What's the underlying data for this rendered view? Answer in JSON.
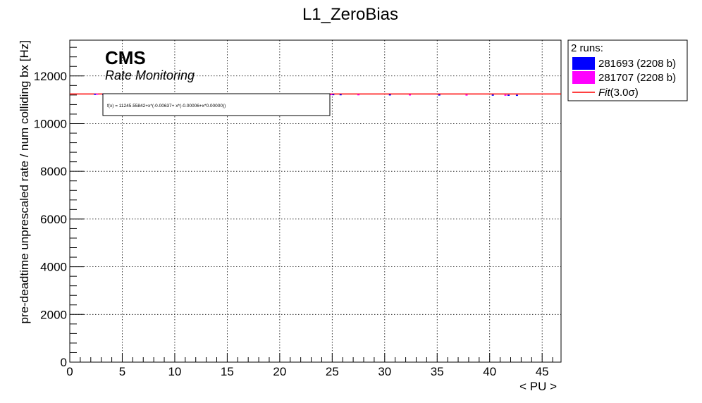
{
  "chart_data": {
    "type": "scatter",
    "title": "L1_ZeroBias",
    "xlabel": "< PU >",
    "ylabel": "pre-deadtime unprescaled rate / num colliding bx [Hz]",
    "xlim": [
      0,
      46.8
    ],
    "ylim": [
      0,
      13500
    ],
    "x_ticks": [
      0,
      5,
      10,
      15,
      20,
      25,
      30,
      35,
      40,
      45
    ],
    "y_ticks": [
      0,
      2000,
      4000,
      6000,
      8000,
      10000,
      12000
    ],
    "grid": true,
    "logo": {
      "main": "CMS",
      "sub": "Rate Monitoring"
    },
    "legend": {
      "placement": "right-outside-top",
      "header": "2 runs:",
      "entries": [
        {
          "label": "281693 (2208 b)",
          "color": "#0000ff",
          "kind": "box"
        },
        {
          "label": "281707 (2208 b)",
          "color": "#ff00ff",
          "kind": "box"
        },
        {
          "label": "Fit",
          "suffix": "(3.0σ)",
          "color": "#ff0000",
          "kind": "line"
        }
      ]
    },
    "fit": {
      "text": "f(x) = 11245.55842+x*(-0.00637+ x*(-0.00006+x*0.00000))",
      "a0": 11245.55842,
      "a1": -0.00637,
      "a2": -6e-05,
      "a3": 0.0,
      "color": "#ff0000"
    },
    "series": [
      {
        "name": "281693 (2208 b)",
        "color": "#0000ff",
        "points": [
          [
            2.4,
            11230
          ],
          [
            3.2,
            11225
          ],
          [
            25.1,
            11215
          ],
          [
            25.8,
            11212
          ],
          [
            30.5,
            11205
          ],
          [
            35.2,
            11200
          ],
          [
            40.3,
            11195
          ],
          [
            41.8,
            11190
          ],
          [
            42.6,
            11188
          ]
        ]
      },
      {
        "name": "281707 (2208 b)",
        "color": "#ff00ff",
        "points": [
          [
            2.6,
            11232
          ],
          [
            24.9,
            11218
          ],
          [
            27.5,
            11210
          ],
          [
            32.4,
            11203
          ],
          [
            37.8,
            11198
          ],
          [
            41.5,
            11192
          ]
        ]
      }
    ]
  }
}
